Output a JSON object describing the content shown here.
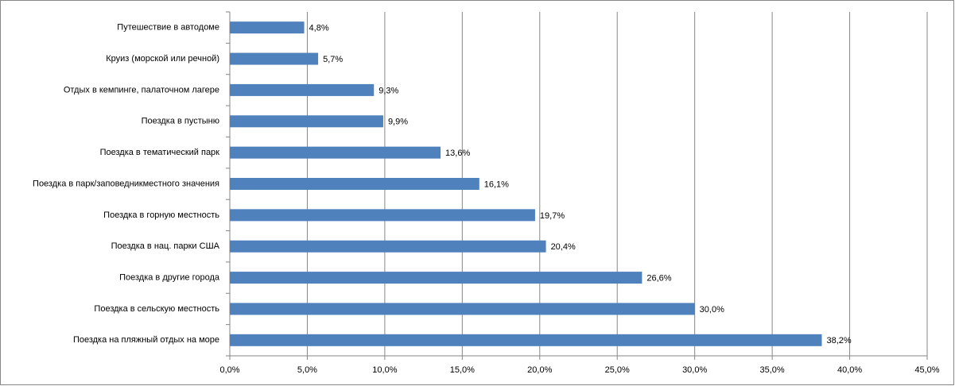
{
  "chart_data": {
    "type": "hbar",
    "orientation": "horizontal",
    "color": "#4f81bd",
    "grid": true,
    "categories": [
      "Путешествие в автодоме",
      "Круиз (морской или речной)",
      "Отдых в кемпинге, палаточном лагере",
      "Поездка в пустыню",
      "Поездка в тематический парк",
      "Поездка в парк/заповедникместного значения",
      "Поездка в горную местность",
      "Поездка в нац. парки США",
      "Поездка в другие города",
      "Поездка в сельскую местность",
      "Поездка на пляжный отдых на море"
    ],
    "values": [
      4.8,
      5.7,
      9.3,
      9.9,
      13.6,
      16.1,
      19.7,
      20.4,
      26.6,
      30.0,
      38.2
    ],
    "value_labels": [
      "4,8%",
      "5,7%",
      "9,3%",
      "9,9%",
      "13,6%",
      "16,1%",
      "19,7%",
      "20,4%",
      "26,6%",
      "30,0%",
      "38,2%"
    ],
    "xlim": [
      0,
      45
    ],
    "xticks": [
      {
        "value": 0,
        "label": "0,0%"
      },
      {
        "value": 5,
        "label": "5,0%"
      },
      {
        "value": 10,
        "label": "10,0%"
      },
      {
        "value": 15,
        "label": "15,0%"
      },
      {
        "value": 20,
        "label": "20,0%"
      },
      {
        "value": 25,
        "label": "25,0%"
      },
      {
        "value": 30,
        "label": "30,0%"
      },
      {
        "value": 35,
        "label": "35,0%"
      },
      {
        "value": 40,
        "label": "40,0%"
      },
      {
        "value": 45,
        "label": "45,0%"
      }
    ]
  }
}
